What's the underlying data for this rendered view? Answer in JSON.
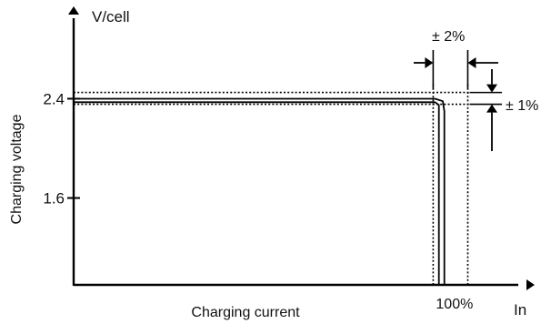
{
  "chart_data": {
    "type": "line",
    "title": "",
    "ylabel": "Charging voltage",
    "y_unit_label": "V/cell",
    "xlabel": "Charging current",
    "x_unit_label": "In",
    "y_ticks": [
      {
        "value": 1.6,
        "label": "1.6"
      },
      {
        "value": 2.4,
        "label": "2.4"
      }
    ],
    "x_ticks": [
      {
        "value": 100,
        "label": "100%"
      }
    ],
    "ylim": [
      0.9,
      3.1
    ],
    "xlim": [
      0,
      118
    ],
    "series": [
      {
        "style": "solid",
        "points": [
          [
            0,
            2.4
          ],
          [
            94,
            2.4
          ],
          [
            96,
            2.38
          ],
          [
            96.4,
            2.3
          ],
          [
            96.4,
            0.9
          ]
        ]
      },
      {
        "style": "solid",
        "points": [
          [
            0,
            2.372
          ],
          [
            94,
            2.372
          ],
          [
            95,
            2.35
          ],
          [
            95,
            0.9
          ]
        ]
      },
      {
        "style": "dotted",
        "points": [
          [
            0,
            2.45
          ],
          [
            103,
            2.45
          ]
        ]
      },
      {
        "style": "dotted",
        "points": [
          [
            0,
            2.355
          ],
          [
            103,
            2.355
          ]
        ]
      },
      {
        "style": "dotted",
        "points": [
          [
            93.5,
            0.9
          ],
          [
            93.5,
            2.52
          ]
        ]
      },
      {
        "style": "dotted",
        "points": [
          [
            102.5,
            0.9
          ],
          [
            102.5,
            2.52
          ]
        ]
      }
    ],
    "annotations": [
      {
        "text": "± 2%",
        "target": "current band"
      },
      {
        "text": "± 1%",
        "target": "voltage band"
      }
    ],
    "grid": false,
    "legend": "none"
  }
}
